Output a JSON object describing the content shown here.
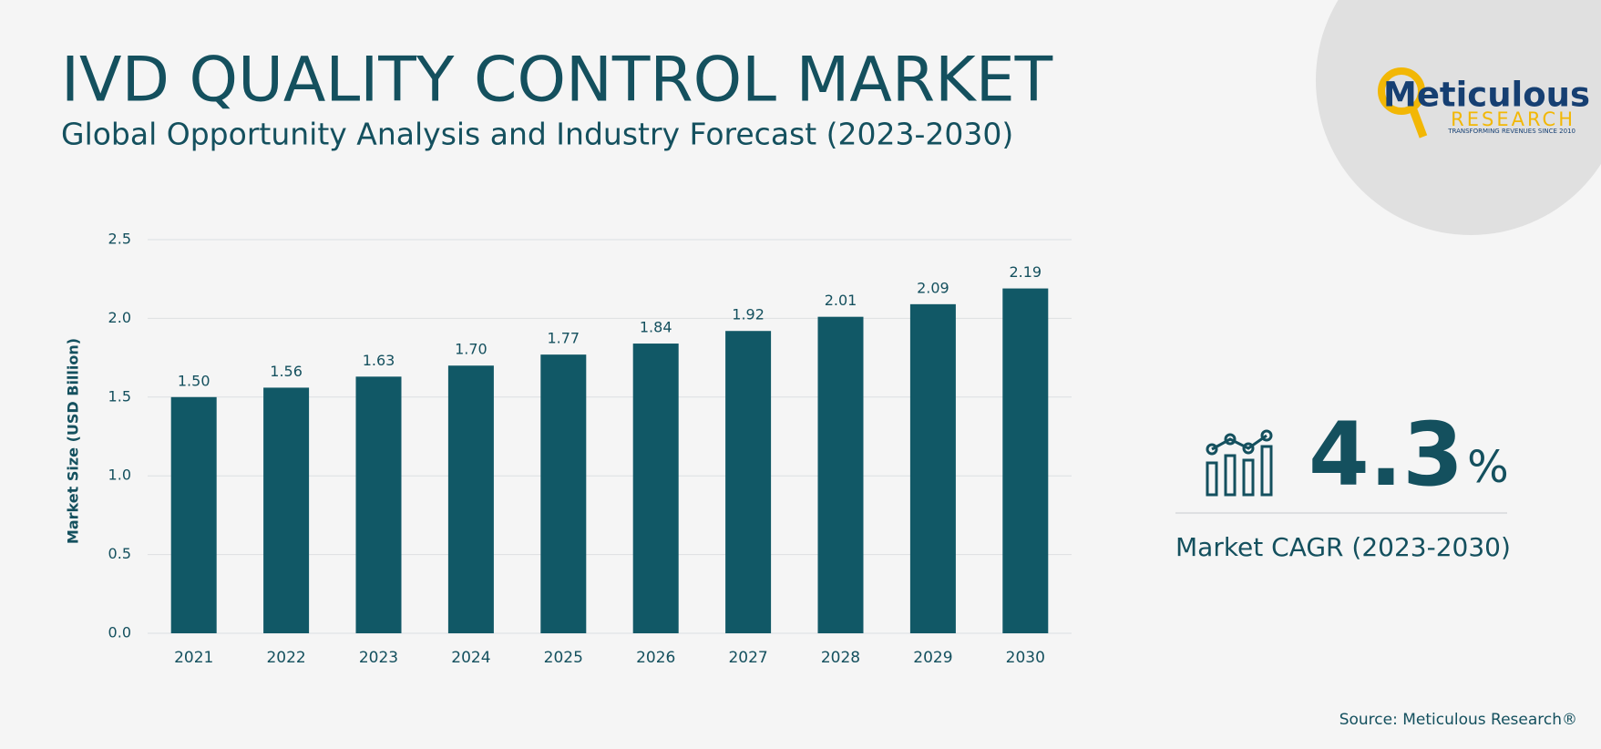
{
  "chart_data": {
    "type": "bar",
    "title": "IVD QUALITY CONTROL MARKET",
    "subtitle": "Global Opportunity Analysis and Industry Forecast (2023-2030)",
    "y_label": "Market Size (USD Billion)",
    "categories": [
      "2021",
      "2022",
      "2023",
      "2024",
      "2025",
      "2026",
      "2027",
      "2028",
      "2029",
      "2030"
    ],
    "values": [
      1.5,
      1.56,
      1.63,
      1.7,
      1.77,
      1.84,
      1.92,
      2.01,
      2.09,
      2.19
    ],
    "value_labels": [
      "1.50",
      "1.56",
      "1.63",
      "1.70",
      "1.77",
      "1.84",
      "1.92",
      "2.01",
      "2.09",
      "2.19"
    ],
    "color": "#115866",
    "ylim": [
      0,
      2.5
    ],
    "yticks": [
      {
        "value": 0,
        "label": "0.0"
      },
      0.5,
      {
        "value": 1,
        "label": "1.0"
      },
      1.5,
      {
        "value": 2,
        "label": "2.0"
      },
      2.5
    ],
    "grid": true
  },
  "logo": {
    "name": "Meticulous",
    "sub": "RESEARCH",
    "tagline": "TRANSFORMING REVENUES SINCE 2010"
  },
  "cagr": {
    "number": "4.3",
    "unit": "%",
    "label": "Market CAGR (2023-2030)"
  },
  "source": "Source: Meticulous Research®"
}
